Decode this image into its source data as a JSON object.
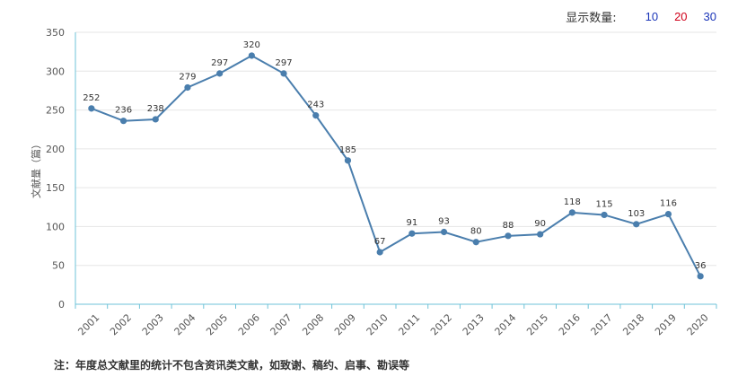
{
  "display_count": {
    "label": "显示数量:",
    "options": [
      "10",
      "20",
      "30"
    ]
  },
  "note": "注：年度总文献里的统计不包含资讯类文献，如致谢、稿约、启事、勘误等",
  "chart_data": {
    "type": "line",
    "title": "",
    "xlabel": "",
    "ylabel": "文献量（篇）",
    "ylim": [
      0,
      350
    ],
    "yticks": [
      0,
      50,
      100,
      150,
      200,
      250,
      300,
      350
    ],
    "grid": true,
    "categories": [
      "2001",
      "2002",
      "2003",
      "2004",
      "2005",
      "2006",
      "2007",
      "2008",
      "2009",
      "2010",
      "2011",
      "2012",
      "2013",
      "2014",
      "2015",
      "2016",
      "2017",
      "2018",
      "2019",
      "2020"
    ],
    "series": [
      {
        "values": [
          252,
          236,
          238,
          279,
          297,
          320,
          297,
          243,
          185,
          67,
          91,
          93,
          80,
          88,
          90,
          118,
          115,
          103,
          116,
          36
        ],
        "color": "#4a7ead"
      }
    ]
  }
}
